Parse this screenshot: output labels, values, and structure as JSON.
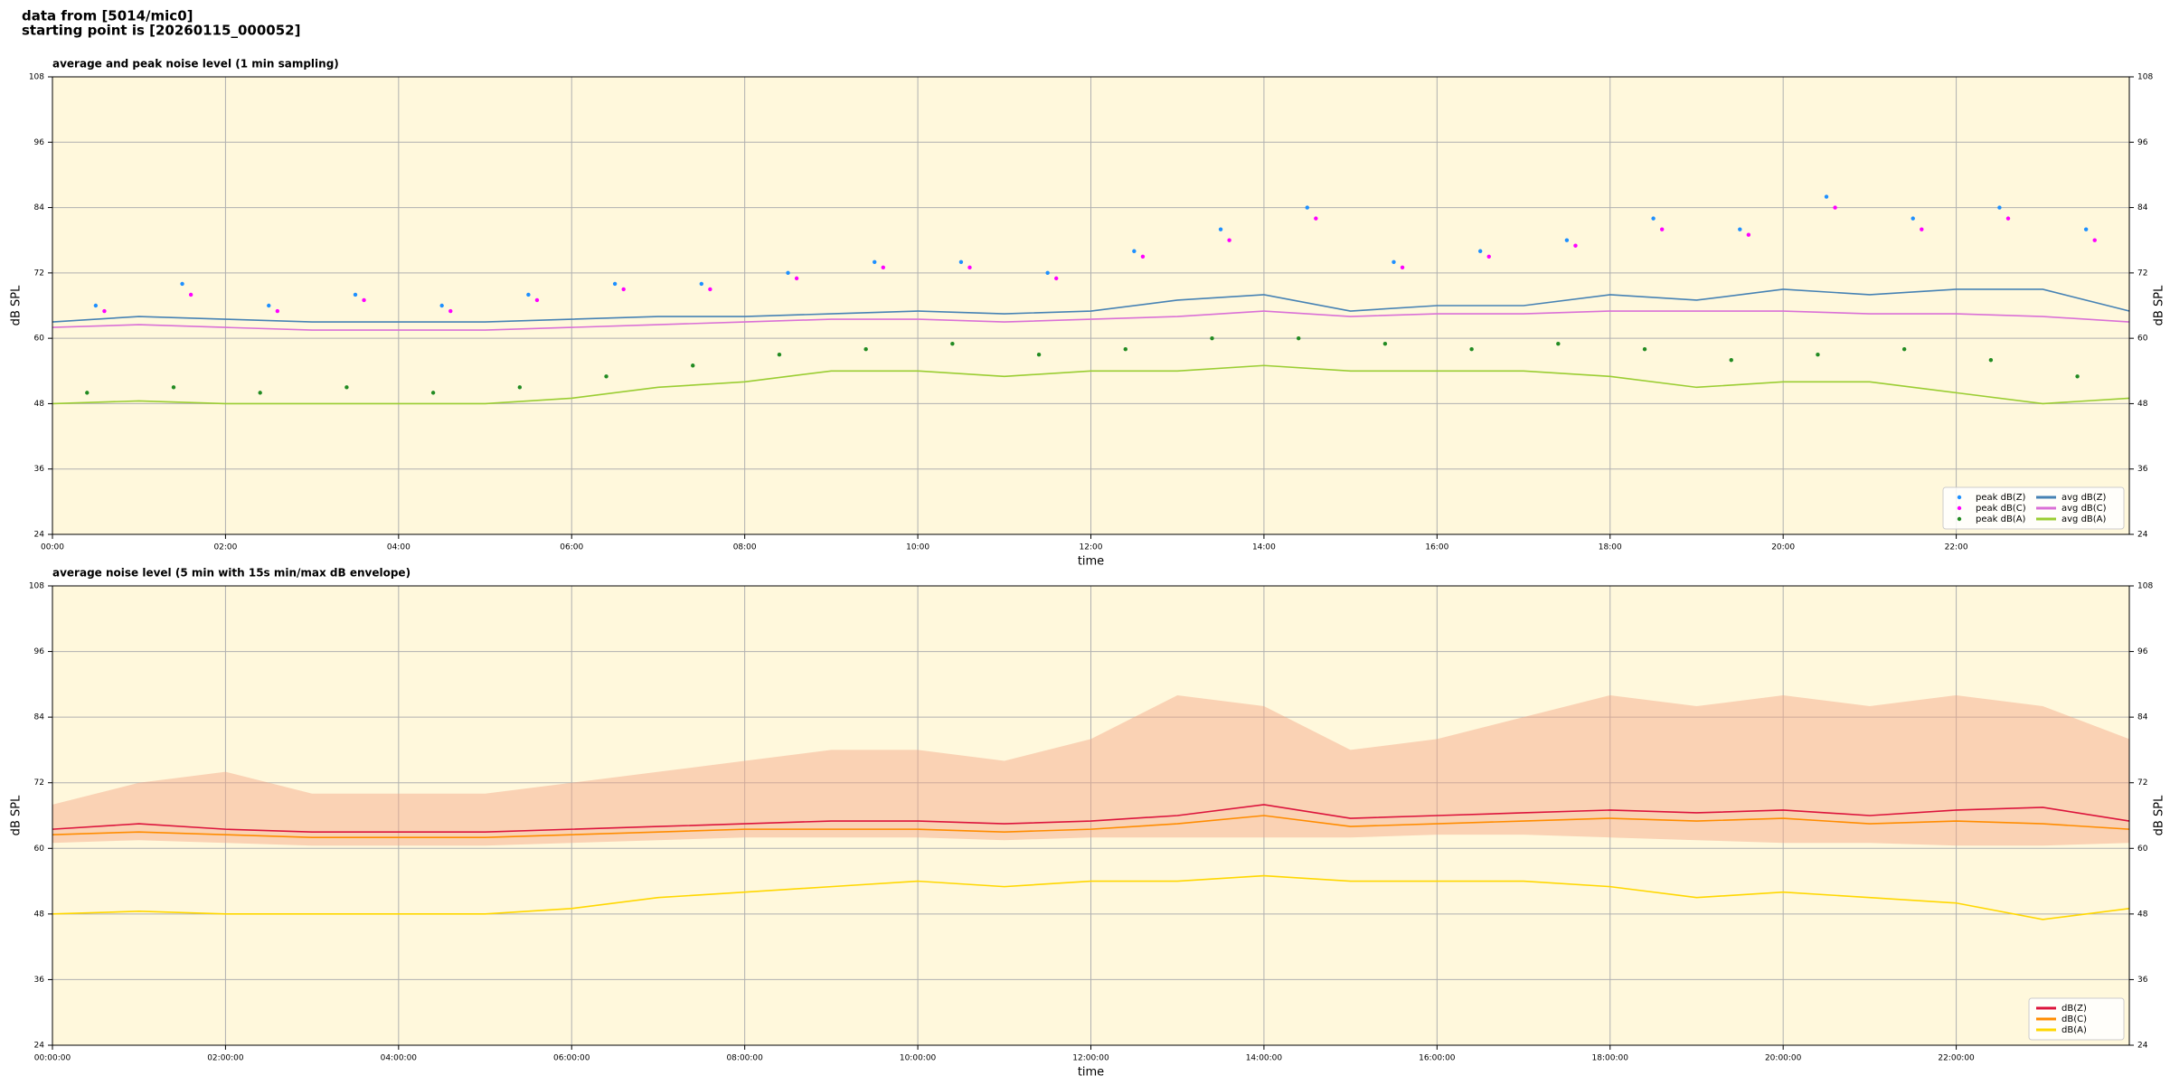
{
  "header": {
    "lines": [
      "data from [5014/mic0]",
      "starting point is [20260115_000052]"
    ]
  },
  "chart_data": [
    {
      "type": "line",
      "title": "average and peak noise level (1 min sampling)",
      "x_label": "time",
      "y_label": "dB SPL",
      "xlim": [
        0,
        24
      ],
      "ylim": [
        24,
        108
      ],
      "xticks": [
        {
          "value": 0,
          "label": "00:00"
        },
        {
          "value": 2,
          "label": "02:00"
        },
        {
          "value": 4,
          "label": "04:00"
        },
        {
          "value": 6,
          "label": "06:00"
        },
        {
          "value": 8,
          "label": "08:00"
        },
        {
          "value": 10,
          "label": "10:00"
        },
        {
          "value": 12,
          "label": "12:00"
        },
        {
          "value": 14,
          "label": "14:00"
        },
        {
          "value": 16,
          "label": "16:00"
        },
        {
          "value": 18,
          "label": "18:00"
        },
        {
          "value": 20,
          "label": "20:00"
        },
        {
          "value": 22,
          "label": "22:00"
        }
      ],
      "yticks": [
        24,
        36,
        48,
        60,
        72,
        84,
        96,
        108
      ],
      "grid": true,
      "legend": "lower right",
      "background": "#fff8dc",
      "x": [
        0,
        1,
        2,
        3,
        4,
        5,
        6,
        7,
        8,
        9,
        10,
        11,
        12,
        13,
        14,
        15,
        16,
        17,
        18,
        19,
        20,
        21,
        22,
        23,
        24
      ],
      "series": [
        {
          "name": "peak dB(Z)",
          "kind": "scatter",
          "color": "#1e90ff",
          "x": [
            0.5,
            1.5,
            2.5,
            3.5,
            4.5,
            5.5,
            6.5,
            7.5,
            8.5,
            9.5,
            10.5,
            11.5,
            12.5,
            13.5,
            14.5,
            15.5,
            16.5,
            17.5,
            18.5,
            19.5,
            20.5,
            21.5,
            22.5,
            23.5
          ],
          "values": [
            66,
            70,
            66,
            68,
            66,
            68,
            70,
            70,
            72,
            74,
            74,
            72,
            76,
            80,
            84,
            74,
            76,
            78,
            82,
            80,
            86,
            82,
            84,
            80
          ]
        },
        {
          "name": "peak dB(C)",
          "kind": "scatter",
          "color": "#ff00ff",
          "x": [
            0.6,
            1.6,
            2.6,
            3.6,
            4.6,
            5.6,
            6.6,
            7.6,
            8.6,
            9.6,
            10.6,
            11.6,
            12.6,
            13.6,
            14.6,
            15.6,
            16.6,
            17.6,
            18.6,
            19.6,
            20.6,
            21.6,
            22.6,
            23.6
          ],
          "values": [
            65,
            68,
            65,
            67,
            65,
            67,
            69,
            69,
            71,
            73,
            73,
            71,
            75,
            78,
            82,
            73,
            75,
            77,
            80,
            79,
            84,
            80,
            82,
            78
          ]
        },
        {
          "name": "peak dB(A)",
          "kind": "scatter",
          "color": "#228b22",
          "x": [
            0.4,
            1.4,
            2.4,
            3.4,
            4.4,
            5.4,
            6.4,
            7.4,
            8.4,
            9.4,
            10.4,
            11.4,
            12.4,
            13.4,
            14.4,
            15.4,
            16.4,
            17.4,
            18.4,
            19.4,
            20.4,
            21.4,
            22.4,
            23.4
          ],
          "values": [
            50,
            51,
            50,
            51,
            50,
            51,
            53,
            55,
            57,
            58,
            59,
            57,
            58,
            60,
            60,
            59,
            58,
            59,
            58,
            56,
            57,
            58,
            56,
            53
          ]
        },
        {
          "name": "avg dB(Z)",
          "kind": "line",
          "color": "#4682b4",
          "values": [
            63,
            64,
            63.5,
            63,
            63,
            63,
            63.5,
            64,
            64,
            64.5,
            65,
            64.5,
            65,
            67,
            68,
            65,
            66,
            66,
            68,
            67,
            69,
            68,
            69,
            69,
            65
          ]
        },
        {
          "name": "avg dB(C)",
          "kind": "line",
          "color": "#da70d6",
          "values": [
            62,
            62.5,
            62,
            61.5,
            61.5,
            61.5,
            62,
            62.5,
            63,
            63.5,
            63.5,
            63,
            63.5,
            64,
            65,
            64,
            64.5,
            64.5,
            65,
            65,
            65,
            64.5,
            64.5,
            64,
            63
          ]
        },
        {
          "name": "avg dB(A)",
          "kind": "line",
          "color": "#9acd32",
          "values": [
            48,
            48.5,
            48,
            48,
            48,
            48,
            49,
            51,
            52,
            54,
            54,
            53,
            54,
            54,
            55,
            54,
            54,
            54,
            53,
            51,
            52,
            52,
            50,
            48,
            49
          ]
        }
      ]
    },
    {
      "type": "line",
      "title": "average noise level (5 min with 15s min/max dB envelope)",
      "x_label": "time",
      "y_label": "dB SPL",
      "xlim": [
        0,
        24
      ],
      "ylim": [
        24,
        108
      ],
      "xticks": [
        {
          "value": 0,
          "label": "00:00:00"
        },
        {
          "value": 2,
          "label": "02:00:00"
        },
        {
          "value": 4,
          "label": "04:00:00"
        },
        {
          "value": 6,
          "label": "06:00:00"
        },
        {
          "value": 8,
          "label": "08:00:00"
        },
        {
          "value": 10,
          "label": "10:00:00"
        },
        {
          "value": 12,
          "label": "12:00:00"
        },
        {
          "value": 14,
          "label": "14:00:00"
        },
        {
          "value": 16,
          "label": "16:00:00"
        },
        {
          "value": 18,
          "label": "18:00:00"
        },
        {
          "value": 20,
          "label": "20:00:00"
        },
        {
          "value": 22,
          "label": "22:00:00"
        }
      ],
      "yticks": [
        24,
        36,
        48,
        60,
        72,
        84,
        96,
        108
      ],
      "grid": true,
      "legend": "lower right",
      "background": "#fff8dc",
      "x": [
        0,
        1,
        2,
        3,
        4,
        5,
        6,
        7,
        8,
        9,
        10,
        11,
        12,
        13,
        14,
        15,
        16,
        17,
        18,
        19,
        20,
        21,
        22,
        23,
        24
      ],
      "envelope": {
        "color": "#f4a582",
        "upper": [
          68,
          72,
          74,
          70,
          70,
          70,
          72,
          74,
          76,
          78,
          78,
          76,
          80,
          88,
          86,
          78,
          80,
          84,
          88,
          86,
          88,
          86,
          88,
          86,
          80
        ],
        "lower": [
          61,
          61.5,
          61,
          60.5,
          60.5,
          60.5,
          61,
          61.5,
          62,
          62,
          62,
          61.5,
          62,
          62,
          62,
          62,
          62.5,
          62.5,
          62,
          61.5,
          61,
          61,
          60.5,
          60.5,
          61
        ]
      },
      "series": [
        {
          "name": "dB(Z)",
          "kind": "line",
          "color": "#dc143c",
          "values": [
            63.5,
            64.5,
            63.5,
            63,
            63,
            63,
            63.5,
            64,
            64.5,
            65,
            65,
            64.5,
            65,
            66,
            68,
            65.5,
            66,
            66.5,
            67,
            66.5,
            67,
            66,
            67,
            67.5,
            65
          ]
        },
        {
          "name": "dB(C)",
          "kind": "line",
          "color": "#ff8c00",
          "values": [
            62.5,
            63,
            62.5,
            62,
            62,
            62,
            62.5,
            63,
            63.5,
            63.5,
            63.5,
            63,
            63.5,
            64.5,
            66,
            64,
            64.5,
            65,
            65.5,
            65,
            65.5,
            64.5,
            65,
            64.5,
            63.5
          ]
        },
        {
          "name": "dB(A)",
          "kind": "line",
          "color": "#ffd700",
          "values": [
            48,
            48.5,
            48,
            48,
            48,
            48,
            49,
            51,
            52,
            53,
            54,
            53,
            54,
            54,
            55,
            54,
            54,
            54,
            53,
            51,
            52,
            51,
            50,
            47,
            49
          ]
        }
      ]
    }
  ]
}
